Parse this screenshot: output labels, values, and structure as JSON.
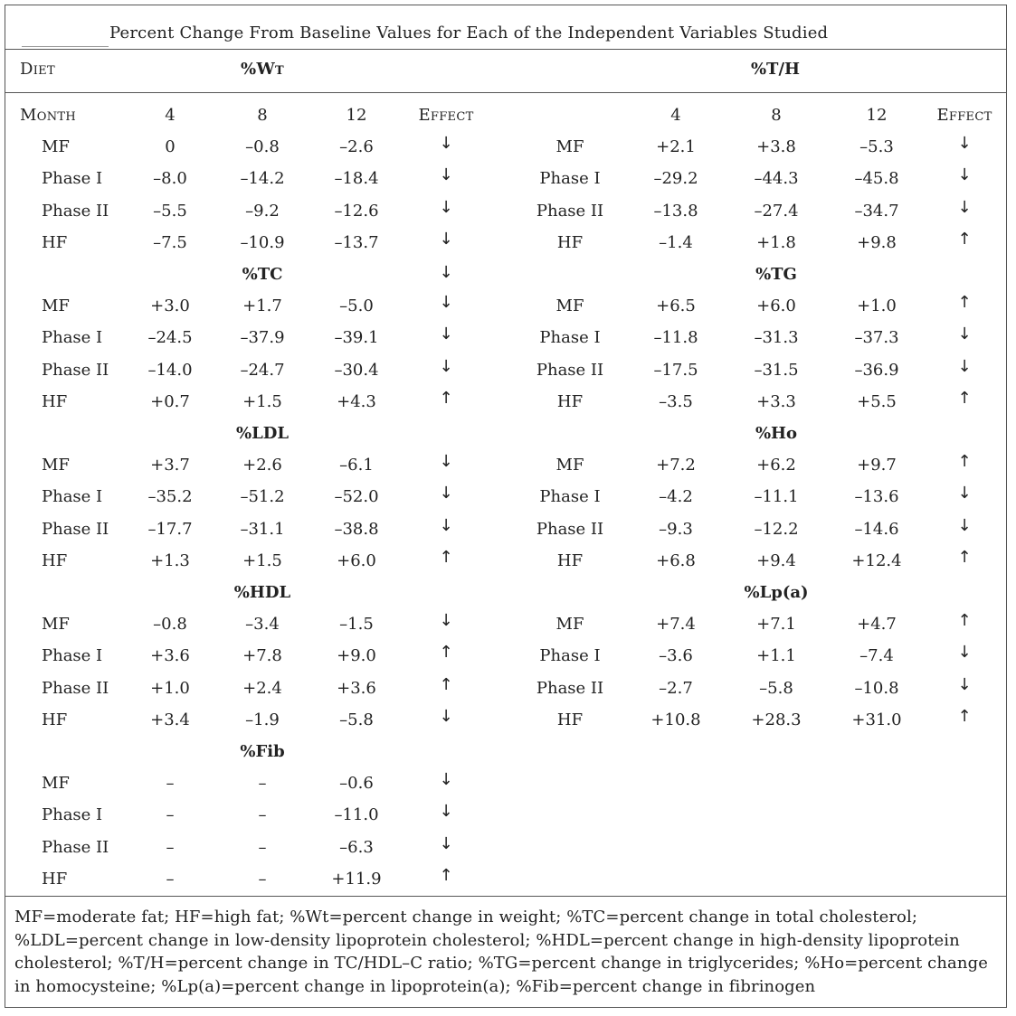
{
  "table": {
    "title": "Percent Change From Baseline Values for Each of the Independent Variables Studied",
    "header": {
      "diet_label": "Diet",
      "month_label": "Month",
      "effect_label": "Effect",
      "months": [
        "4",
        "8",
        "12"
      ]
    },
    "left_title": "%Wt",
    "right_title": "%T/H",
    "blocks": [
      {
        "left": {
          "title": "%Wt",
          "rows": [
            {
              "diet": "MF",
              "m4": "0",
              "m8": "–0.8",
              "m12": "–2.6",
              "effect": "↓"
            },
            {
              "diet": "Phase I",
              "m4": "–8.0",
              "m8": "–14.2",
              "m12": "–18.4",
              "effect": "↓"
            },
            {
              "diet": "Phase II",
              "m4": "–5.5",
              "m8": "–9.2",
              "m12": "–12.6",
              "effect": "↓"
            },
            {
              "diet": "HF",
              "m4": "–7.5",
              "m8": "–10.9",
              "m12": "–13.7",
              "effect": "↓"
            }
          ]
        },
        "right": {
          "title": "%T/H",
          "rows": [
            {
              "diet": "MF",
              "m4": "+2.1",
              "m8": "+3.8",
              "m12": "–5.3",
              "effect": "↓"
            },
            {
              "diet": "Phase I",
              "m4": "–29.2",
              "m8": "–44.3",
              "m12": "–45.8",
              "effect": "↓"
            },
            {
              "diet": "Phase II",
              "m4": "–13.8",
              "m8": "–27.4",
              "m12": "–34.7",
              "effect": "↓"
            },
            {
              "diet": "HF",
              "m4": "–1.4",
              "m8": "+1.8",
              "m12": "+9.8",
              "effect": "↑"
            }
          ]
        }
      },
      {
        "left": {
          "title": "%TC",
          "title_effect": "↓",
          "rows": [
            {
              "diet": "MF",
              "m4": "+3.0",
              "m8": "+1.7",
              "m12": "–5.0",
              "effect": "↓"
            },
            {
              "diet": "Phase I",
              "m4": "–24.5",
              "m8": "–37.9",
              "m12": "–39.1",
              "effect": "↓"
            },
            {
              "diet": "Phase II",
              "m4": "–14.0",
              "m8": "–24.7",
              "m12": "–30.4",
              "effect": "↓"
            },
            {
              "diet": "HF",
              "m4": "+0.7",
              "m8": "+1.5",
              "m12": "+4.3",
              "effect": "↑"
            }
          ]
        },
        "right": {
          "title": "%TG",
          "rows": [
            {
              "diet": "MF",
              "m4": "+6.5",
              "m8": "+6.0",
              "m12": "+1.0",
              "effect": "↑"
            },
            {
              "diet": "Phase I",
              "m4": "–11.8",
              "m8": "–31.3",
              "m12": "–37.3",
              "effect": "↓"
            },
            {
              "diet": "Phase II",
              "m4": "–17.5",
              "m8": "–31.5",
              "m12": "–36.9",
              "effect": "↓"
            },
            {
              "diet": "HF",
              "m4": "–3.5",
              "m8": "+3.3",
              "m12": "+5.5",
              "effect": "↑"
            }
          ]
        }
      },
      {
        "left": {
          "title": "%LDL",
          "rows": [
            {
              "diet": "MF",
              "m4": "+3.7",
              "m8": "+2.6",
              "m12": "–6.1",
              "effect": "↓"
            },
            {
              "diet": "Phase I",
              "m4": "–35.2",
              "m8": "–51.2",
              "m12": "–52.0",
              "effect": "↓"
            },
            {
              "diet": "Phase II",
              "m4": "–17.7",
              "m8": "–31.1",
              "m12": "–38.8",
              "effect": "↓"
            },
            {
              "diet": "HF",
              "m4": "+1.3",
              "m8": "+1.5",
              "m12": "+6.0",
              "effect": "↑"
            }
          ]
        },
        "right": {
          "title": "%Ho",
          "rows": [
            {
              "diet": "MF",
              "m4": "+7.2",
              "m8": "+6.2",
              "m12": "+9.7",
              "effect": "↑"
            },
            {
              "diet": "Phase I",
              "m4": "–4.2",
              "m8": "–11.1",
              "m12": "–13.6",
              "effect": "↓"
            },
            {
              "diet": "Phase II",
              "m4": "–9.3",
              "m8": "–12.2",
              "m12": "–14.6",
              "effect": "↓"
            },
            {
              "diet": "HF",
              "m4": "+6.8",
              "m8": "+9.4",
              "m12": "+12.4",
              "effect": "↑"
            }
          ]
        }
      },
      {
        "left": {
          "title": "%HDL",
          "rows": [
            {
              "diet": "MF",
              "m4": "–0.8",
              "m8": "–3.4",
              "m12": "–1.5",
              "effect": "↓"
            },
            {
              "diet": "Phase I",
              "m4": "+3.6",
              "m8": "+7.8",
              "m12": "+9.0",
              "effect": "↑"
            },
            {
              "diet": "Phase II",
              "m4": "+1.0",
              "m8": "+2.4",
              "m12": "+3.6",
              "effect": "↑"
            },
            {
              "diet": "HF",
              "m4": "+3.4",
              "m8": "–1.9",
              "m12": "–5.8",
              "effect": "↓"
            }
          ]
        },
        "right": {
          "title": "%Lp(a)",
          "rows": [
            {
              "diet": "MF",
              "m4": "+7.4",
              "m8": "+7.1",
              "m12": "+4.7",
              "effect": "↑"
            },
            {
              "diet": "Phase I",
              "m4": "–3.6",
              "m8": "+1.1",
              "m12": "–7.4",
              "effect": "↓"
            },
            {
              "diet": "Phase II",
              "m4": "–2.7",
              "m8": "–5.8",
              "m12": "–10.8",
              "effect": "↓"
            },
            {
              "diet": "HF",
              "m4": "+10.8",
              "m8": "+28.3",
              "m12": "+31.0",
              "effect": "↑"
            }
          ]
        }
      },
      {
        "left": {
          "title": "%Fib",
          "rows": [
            {
              "diet": "MF",
              "m4": "–",
              "m8": "–",
              "m12": "–0.6",
              "effect": "↓"
            },
            {
              "diet": "Phase I",
              "m4": "–",
              "m8": "–",
              "m12": "–11.0",
              "effect": "↓"
            },
            {
              "diet": "Phase II",
              "m4": "–",
              "m8": "–",
              "m12": "–6.3",
              "effect": "↓"
            },
            {
              "diet": "HF",
              "m4": "–",
              "m8": "–",
              "m12": "+11.9",
              "effect": "↑"
            }
          ]
        },
        "right": null
      }
    ],
    "footnote": "MF=moderate fat; HF=high fat; %Wt=percent change in weight; %TC=percent change in total cholesterol; %LDL=percent change in low-density lipoprotein cholesterol; %HDL=percent change in high-density lipoprotein cholesterol; %T/H=percent change in TC/HDL–C ratio; %TG=percent change in triglycerides; %Ho=percent change in homocysteine; %Lp(a)=percent change in lipoprotein(a); %Fib=percent change in fibrinogen"
  }
}
